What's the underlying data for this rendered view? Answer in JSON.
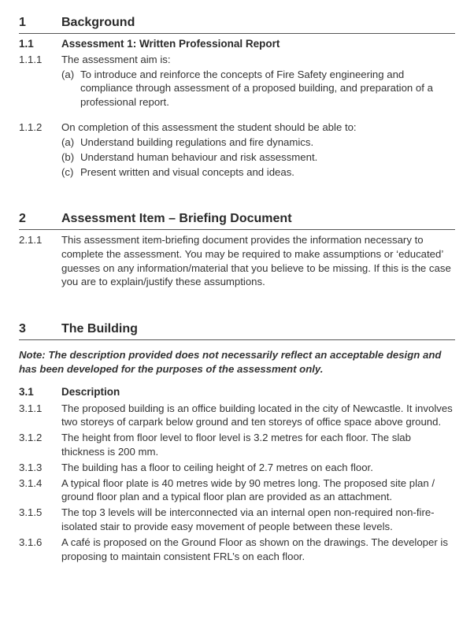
{
  "colors": {
    "text": "#333333",
    "heading": "#2a2a2a",
    "rule": "#555555",
    "background": "#ffffff"
  },
  "typography": {
    "body_font": "Arial",
    "body_size_pt": 10,
    "heading_size_pt": 12
  },
  "sections": {
    "s1": {
      "num": "1",
      "title": "Background",
      "sub1": {
        "num": "1.1",
        "title": "Assessment 1: Written Professional Report"
      },
      "c111": {
        "num": "1.1.1",
        "lead": "The assessment aim is:",
        "a": {
          "marker": "(a)",
          "text": "To introduce and reinforce the concepts of Fire Safety engineering and compliance through assessment of a proposed building, and preparation of a professional report."
        }
      },
      "c112": {
        "num": "1.1.2",
        "lead": "On completion of this assessment the student should be able to:",
        "a": {
          "marker": "(a)",
          "text": "Understand building regulations and fire dynamics."
        },
        "b": {
          "marker": "(b)",
          "text": "Understand human behaviour and risk assessment."
        },
        "c": {
          "marker": "(c)",
          "text": "Present written and visual concepts and ideas."
        }
      }
    },
    "s2": {
      "num": "2",
      "title": "Assessment Item – Briefing Document",
      "c211": {
        "num": "2.1.1",
        "text": "This assessment item-briefing document provides the information necessary to complete the assessment. You may be required to make assumptions or ‘educated’ guesses on any information/material that you believe to be missing. If this is the case you are to explain/justify these assumptions."
      }
    },
    "s3": {
      "num": "3",
      "title": "The Building",
      "note": "Note: The description provided does not necessarily reflect an acceptable design and has been developed for the purposes of the assessment only.",
      "sub1": {
        "num": "3.1",
        "title": "Description"
      },
      "c311": {
        "num": "3.1.1",
        "text": "The proposed building is an office building located in the city of Newcastle. It involves two storeys of carpark below ground and ten storeys of office space above ground."
      },
      "c312": {
        "num": "3.1.2",
        "text": "The height from floor level to floor level is 3.2 metres for each floor. The slab thickness is 200 mm."
      },
      "c313": {
        "num": "3.1.3",
        "text": "The building has a floor to ceiling height of 2.7 metres on each floor."
      },
      "c314": {
        "num": "3.1.4",
        "text": "A typical floor plate is 40 metres wide by 90 metres long. The proposed site plan / ground floor plan and a typical floor plan are provided as an attachment."
      },
      "c315": {
        "num": "3.1.5",
        "text": "The top 3 levels will be interconnected via an internal open non-required non-fire-isolated stair to provide easy movement of people between these levels."
      },
      "c316": {
        "num": "3.1.6",
        "text": "A café is proposed on the Ground Floor as shown on the drawings. The developer is proposing to maintain consistent FRL’s on each floor."
      }
    }
  }
}
